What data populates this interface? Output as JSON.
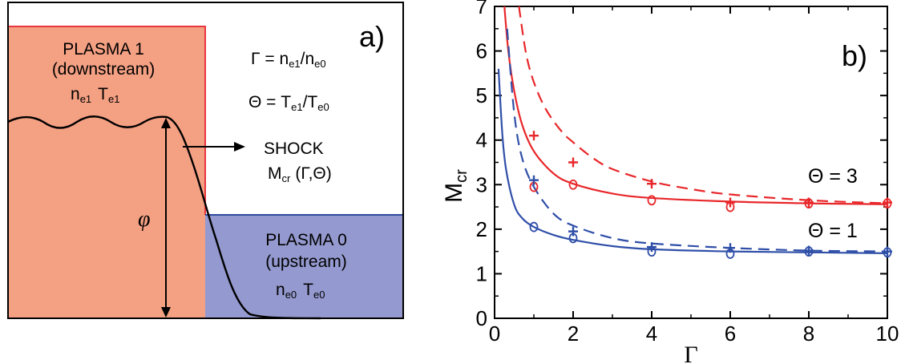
{
  "panel_a": {
    "label": "a)",
    "plasma1": {
      "line1": "PLASMA 1",
      "line2": "(downstream)",
      "n": "n",
      "n_sub": "e1",
      "T": "T",
      "T_sub": "e1"
    },
    "plasma0": {
      "line1": "PLASMA 0",
      "line2": "(upstream)",
      "n": "n",
      "n_sub": "e0",
      "T": "T",
      "T_sub": "e0"
    },
    "gamma_def": {
      "lhs": "Γ = n",
      "s1": "e1",
      "mid": "/n",
      "s2": "e0"
    },
    "theta_def": {
      "lhs": "Θ = T",
      "s1": "e1",
      "mid": "/T",
      "s2": "e0"
    },
    "shock": {
      "title": "SHOCK",
      "m": "M",
      "m_sub": "cr",
      "args": "(Γ,Θ)"
    },
    "phi": "φ",
    "colors": {
      "plasma1_fill": "#f4a083",
      "plasma1_edge": "#e8363f",
      "plasma0_fill": "#9499cf",
      "plasma0_edge": "#2f4a9e"
    }
  },
  "chart_data": {
    "type": "line",
    "panel_label": "b)",
    "xlabel": "Γ",
    "ylabel": "M",
    "ylabel_sub": "cr",
    "xlim": [
      0,
      10
    ],
    "ylim": [
      0,
      7
    ],
    "xticks": [
      "0",
      "2",
      "4",
      "6",
      "8",
      "10"
    ],
    "yticks": [
      "0",
      "1",
      "2",
      "3",
      "4",
      "5",
      "6",
      "7"
    ],
    "annotations": [
      {
        "text": "Θ = 3",
        "color": "#000000"
      },
      {
        "text": "Θ = 1",
        "color": "#000000"
      }
    ],
    "series": [
      {
        "style": "solid",
        "color": "#e8272a",
        "x": [
          0.25,
          0.35,
          0.5,
          0.7,
          1.0,
          1.5,
          2,
          3,
          4,
          6,
          8,
          10
        ],
        "y": [
          7.0,
          6.0,
          5.1,
          4.35,
          3.75,
          3.25,
          3.02,
          2.8,
          2.7,
          2.62,
          2.58,
          2.56
        ]
      },
      {
        "style": "dashed",
        "color": "#e8272a",
        "x": [
          0.62,
          0.8,
          1.0,
          1.3,
          1.7,
          2,
          2.5,
          3,
          4,
          5,
          6,
          8,
          10
        ],
        "y": [
          7.0,
          5.95,
          5.3,
          4.7,
          4.2,
          3.95,
          3.6,
          3.35,
          3.07,
          2.9,
          2.78,
          2.65,
          2.58
        ]
      },
      {
        "style": "solid",
        "color": "#2f4fa8",
        "x": [
          0.1,
          0.2,
          0.3,
          0.5,
          0.7,
          1.0,
          1.5,
          2,
          3,
          4,
          6,
          8,
          10
        ],
        "y": [
          5.6,
          4.1,
          3.3,
          2.55,
          2.25,
          2.05,
          1.87,
          1.76,
          1.62,
          1.55,
          1.5,
          1.48,
          1.46
        ]
      },
      {
        "style": "dashed",
        "color": "#2f4fa8",
        "x": [
          0.32,
          0.5,
          0.7,
          1.0,
          1.5,
          2,
          3,
          4,
          6,
          8,
          10
        ],
        "y": [
          6.5,
          4.6,
          3.6,
          2.95,
          2.35,
          2.08,
          1.8,
          1.68,
          1.58,
          1.52,
          1.5
        ]
      },
      {
        "style": "plus",
        "color": "#e8272a",
        "x": [
          1,
          2,
          4,
          6,
          8,
          10
        ],
        "y": [
          4.1,
          3.5,
          3.02,
          2.6,
          2.6,
          2.6
        ]
      },
      {
        "style": "circle",
        "color": "#e8272a",
        "x": [
          1,
          2,
          4,
          6,
          8,
          10
        ],
        "y": [
          2.95,
          3.0,
          2.65,
          2.5,
          2.58,
          2.58
        ]
      },
      {
        "style": "plus",
        "color": "#2f4fa8",
        "x": [
          1,
          2,
          4,
          6,
          8,
          10
        ],
        "y": [
          3.1,
          1.95,
          1.6,
          1.58,
          1.52,
          1.5
        ]
      },
      {
        "style": "circle",
        "color": "#2f4fa8",
        "x": [
          1,
          2,
          4,
          6,
          8,
          10
        ],
        "y": [
          2.05,
          1.8,
          1.5,
          1.45,
          1.5,
          1.48
        ]
      }
    ]
  }
}
